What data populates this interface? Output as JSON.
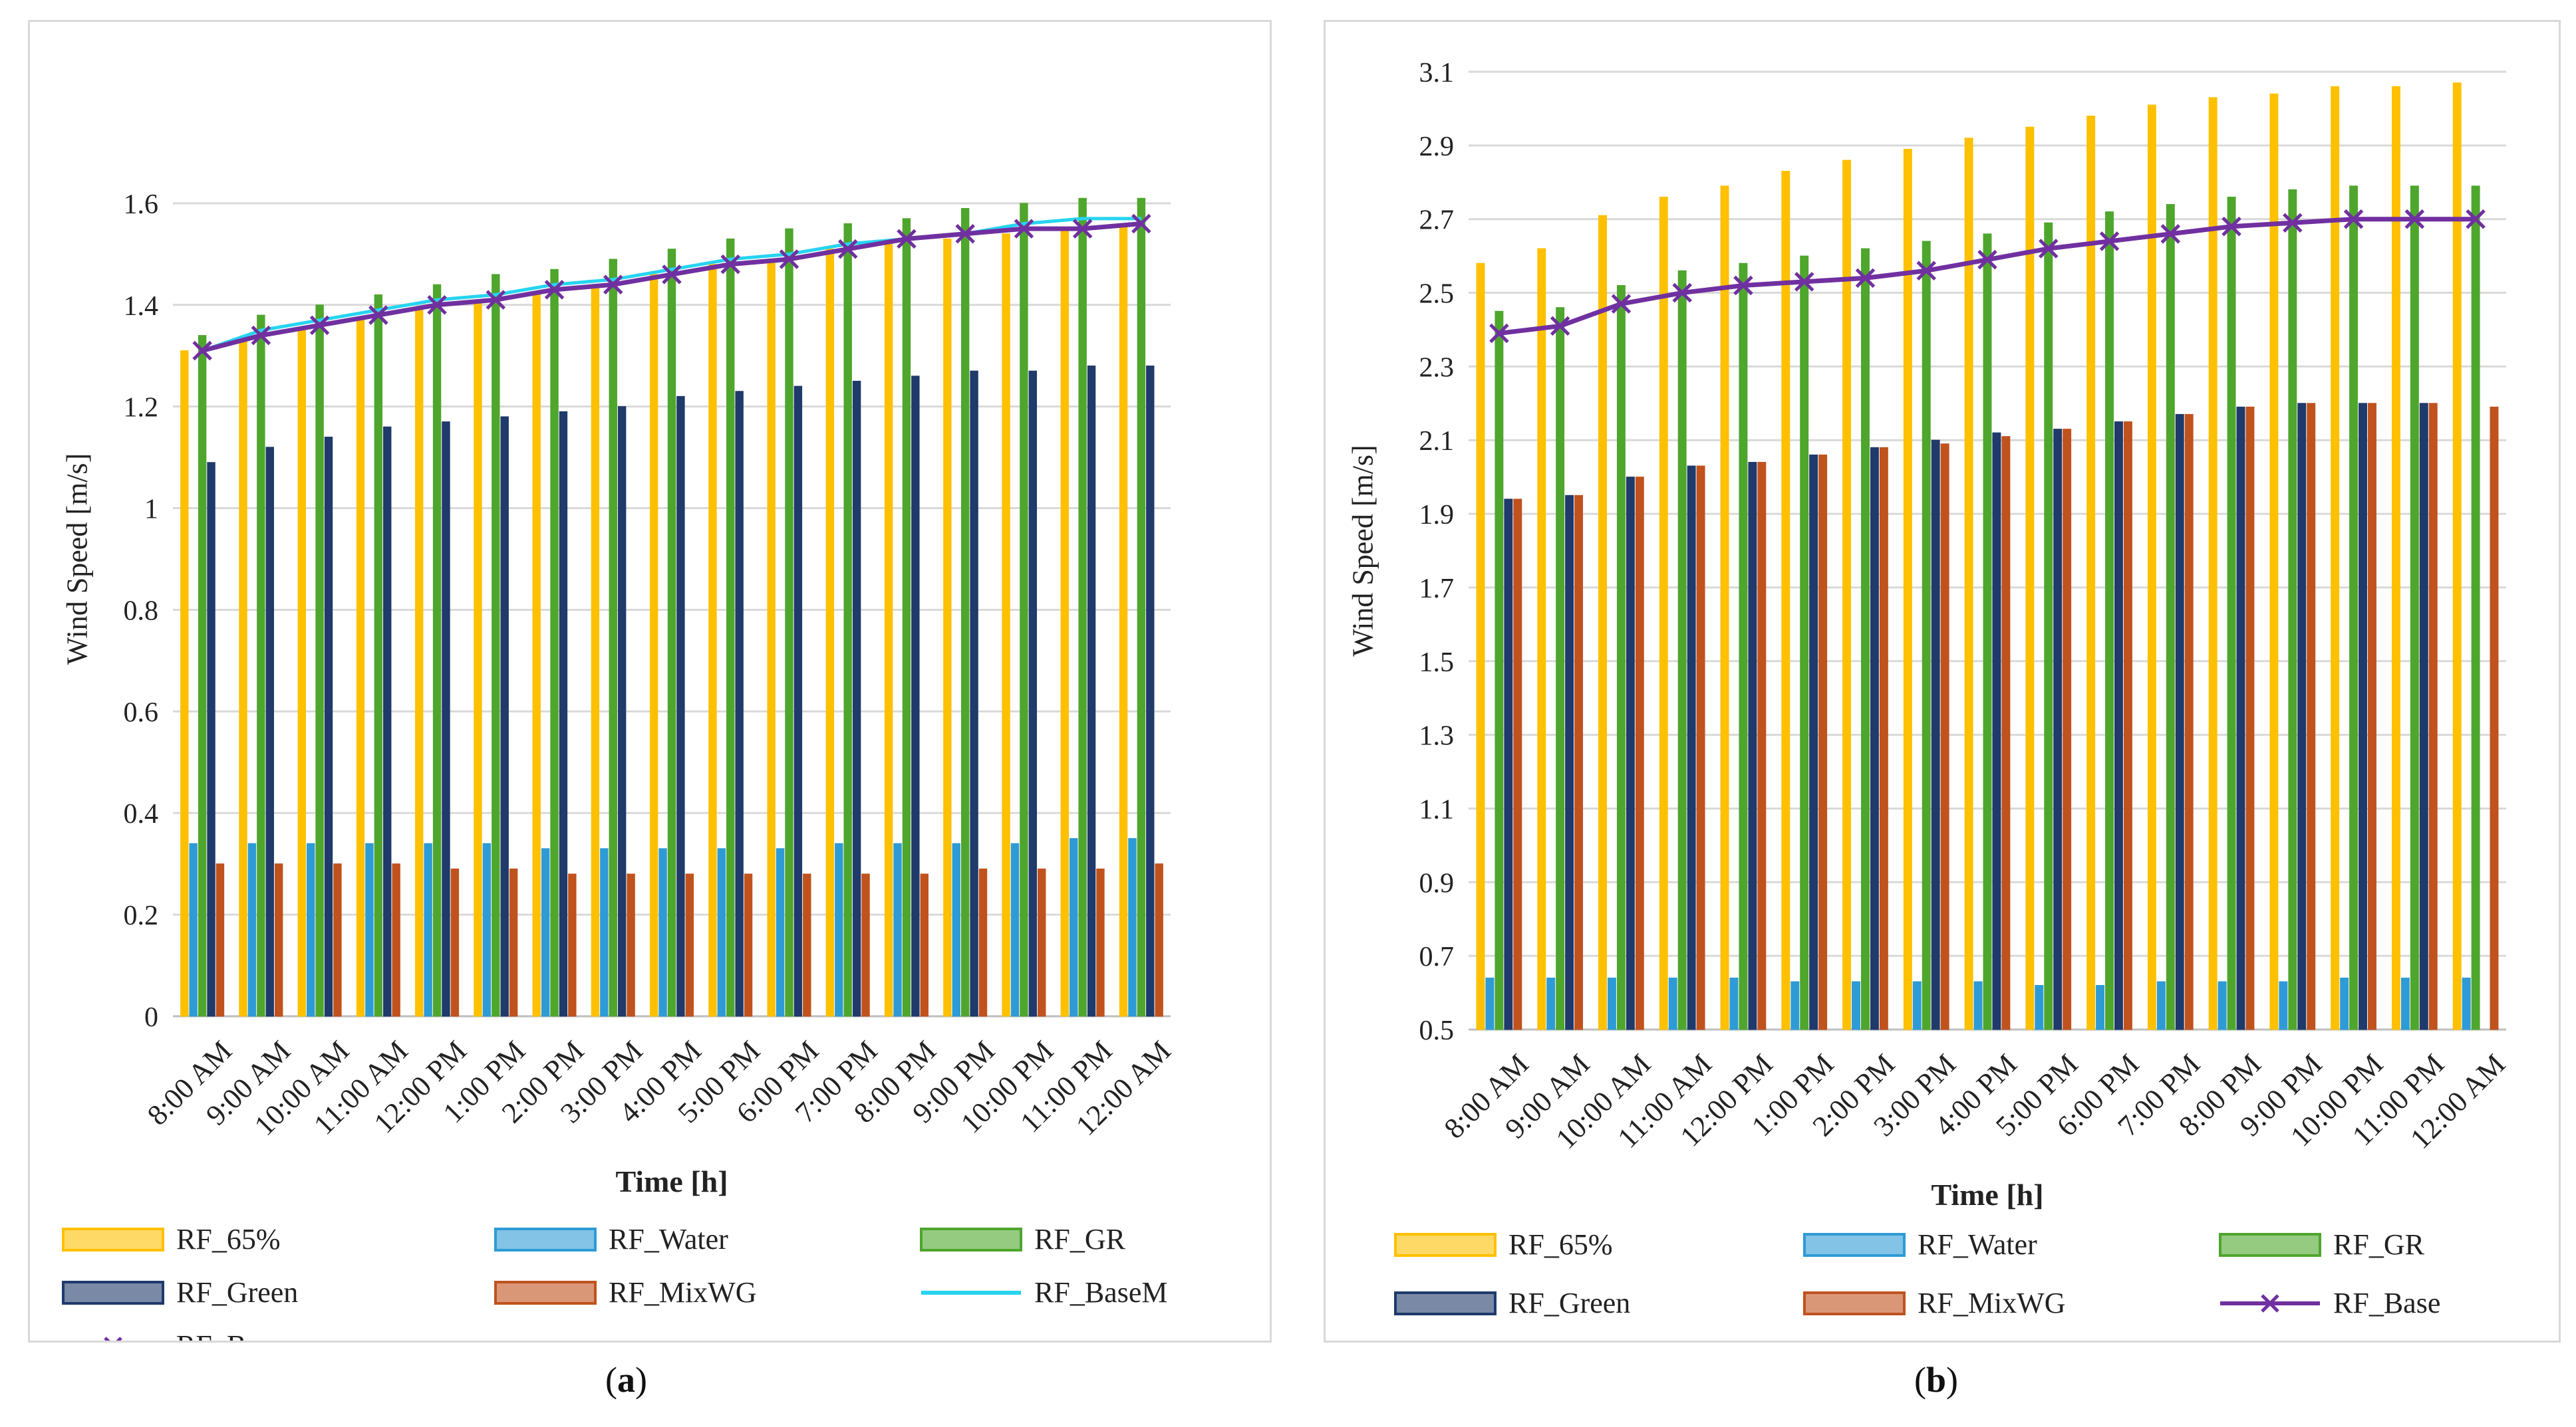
{
  "colors": {
    "RF_65%": "#FFC000",
    "RF_Water": "#2E9BD6",
    "RF_GR": "#4EA62D",
    "RF_Green": "#1F3A6B",
    "RF_MixWG": "#C0521E",
    "RF_BaseM": "#27D4F0",
    "RF_Base": "#7030A0",
    "grid": "#d9d9d9",
    "axis": "#bfbfbf",
    "text": "#222222"
  },
  "labels": {
    "a": "(a)",
    "b": "(b)",
    "a_letter": "a",
    "b_letter": "b"
  },
  "chart_data": [
    {
      "id": "a",
      "type": "bar",
      "title": "",
      "xlabel": "Time [h]",
      "ylabel": "Wind Speed [m/s]",
      "ylim": [
        0,
        1.8
      ],
      "yticks": [
        0,
        0.2,
        0.4,
        0.6,
        0.8,
        1,
        1.2,
        1.4,
        1.6
      ],
      "ytick_labels": [
        "0",
        "0.2",
        "0.4",
        "0.6",
        "0.8",
        "1",
        "1.2",
        "1.4",
        "1.6"
      ],
      "grid": true,
      "legend_position": "bottom",
      "categories": [
        "8:00 AM",
        "9:00 AM",
        "10:00 AM",
        "11:00 AM",
        "12:00 PM",
        "1:00 PM",
        "2:00 PM",
        "3:00 PM",
        "4:00 PM",
        "5:00 PM",
        "6:00 PM",
        "7:00 PM",
        "8:00 PM",
        "9:00 PM",
        "10:00 PM",
        "11:00 PM",
        "12:00 AM"
      ],
      "series": [
        {
          "name": "RF_65%",
          "kind": "bar",
          "values": [
            1.31,
            1.33,
            1.35,
            1.37,
            1.39,
            1.41,
            1.42,
            1.44,
            1.46,
            1.48,
            1.49,
            1.51,
            1.52,
            1.53,
            1.54,
            1.55,
            1.56
          ]
        },
        {
          "name": "RF_Water",
          "kind": "bar",
          "values": [
            0.34,
            0.34,
            0.34,
            0.34,
            0.34,
            0.34,
            0.33,
            0.33,
            0.33,
            0.33,
            0.33,
            0.34,
            0.34,
            0.34,
            0.34,
            0.35,
            0.35
          ]
        },
        {
          "name": "RF_GR",
          "kind": "bar",
          "values": [
            1.34,
            1.38,
            1.4,
            1.42,
            1.44,
            1.46,
            1.47,
            1.49,
            1.51,
            1.53,
            1.55,
            1.56,
            1.57,
            1.59,
            1.6,
            1.61,
            1.61
          ]
        },
        {
          "name": "RF_Green",
          "kind": "bar",
          "values": [
            1.09,
            1.12,
            1.14,
            1.16,
            1.17,
            1.18,
            1.19,
            1.2,
            1.22,
            1.23,
            1.24,
            1.25,
            1.26,
            1.27,
            1.27,
            1.28,
            1.28
          ]
        },
        {
          "name": "RF_MixWG",
          "kind": "bar",
          "values": [
            0.3,
            0.3,
            0.3,
            0.3,
            0.29,
            0.29,
            0.28,
            0.28,
            0.28,
            0.28,
            0.28,
            0.28,
            0.28,
            0.29,
            0.29,
            0.29,
            0.3
          ]
        },
        {
          "name": "RF_BaseM",
          "kind": "line",
          "values": [
            1.31,
            1.35,
            1.37,
            1.39,
            1.41,
            1.42,
            1.44,
            1.45,
            1.47,
            1.49,
            1.5,
            1.52,
            1.53,
            1.54,
            1.56,
            1.57,
            1.57
          ]
        },
        {
          "name": "RF_Base",
          "kind": "line-marker",
          "values": [
            1.31,
            1.34,
            1.36,
            1.38,
            1.4,
            1.41,
            1.43,
            1.44,
            1.46,
            1.48,
            1.49,
            1.51,
            1.53,
            1.54,
            1.55,
            1.55,
            1.56
          ]
        }
      ]
    },
    {
      "id": "b",
      "type": "bar",
      "title": "",
      "xlabel": "Time [h]",
      "ylabel": "Wind Speed [m/s]",
      "ylim": [
        0.5,
        3.1
      ],
      "yticks": [
        0.5,
        0.7,
        0.9,
        1.1,
        1.3,
        1.5,
        1.7,
        1.9,
        2.1,
        2.3,
        2.5,
        2.7,
        2.9,
        3.1
      ],
      "ytick_labels": [
        "0.5",
        "0.7",
        "0.9",
        "1.1",
        "1.3",
        "1.5",
        "1.7",
        "1.9",
        "2.1",
        "2.3",
        "2.5",
        "2.7",
        "2.9",
        "3.1"
      ],
      "grid": true,
      "legend_position": "bottom",
      "categories": [
        "8:00 AM",
        "9:00 AM",
        "10:00 AM",
        "11:00 AM",
        "12:00 PM",
        "1:00 PM",
        "2:00 PM",
        "3:00 PM",
        "4:00 PM",
        "5:00 PM",
        "6:00 PM",
        "7:00 PM",
        "8:00 PM",
        "9:00 PM",
        "10:00 PM",
        "11:00 PM",
        "12:00 AM"
      ],
      "series": [
        {
          "name": "RF_65%",
          "kind": "bar",
          "values": [
            2.58,
            2.62,
            2.71,
            2.76,
            2.79,
            2.83,
            2.86,
            2.89,
            2.92,
            2.95,
            2.98,
            3.01,
            3.03,
            3.04,
            3.06,
            3.06,
            3.07
          ]
        },
        {
          "name": "RF_Water",
          "kind": "bar",
          "values": [
            0.64,
            0.64,
            0.64,
            0.64,
            0.64,
            0.63,
            0.63,
            0.63,
            0.63,
            0.62,
            0.62,
            0.63,
            0.63,
            0.63,
            0.64,
            0.64,
            0.64
          ]
        },
        {
          "name": "RF_GR",
          "kind": "bar",
          "values": [
            2.45,
            2.46,
            2.52,
            2.56,
            2.58,
            2.6,
            2.62,
            2.64,
            2.66,
            2.69,
            2.72,
            2.74,
            2.76,
            2.78,
            2.79,
            2.79,
            2.79
          ]
        },
        {
          "name": "RF_Green",
          "kind": "bar",
          "values": [
            1.94,
            1.95,
            2.0,
            2.03,
            2.04,
            2.06,
            2.08,
            2.1,
            2.12,
            2.13,
            2.15,
            2.17,
            2.19,
            2.2,
            2.2,
            2.2,
            null
          ]
        },
        {
          "name": "RF_MixWG",
          "kind": "bar",
          "values": [
            1.94,
            1.95,
            2.0,
            2.03,
            2.04,
            2.06,
            2.08,
            2.09,
            2.11,
            2.13,
            2.15,
            2.17,
            2.19,
            2.2,
            2.2,
            2.2,
            2.19
          ]
        },
        {
          "name": "RF_Base",
          "kind": "line-marker",
          "values": [
            2.39,
            2.41,
            2.47,
            2.5,
            2.52,
            2.53,
            2.54,
            2.56,
            2.59,
            2.62,
            2.64,
            2.66,
            2.68,
            2.69,
            2.7,
            2.7,
            2.7
          ]
        }
      ]
    }
  ]
}
